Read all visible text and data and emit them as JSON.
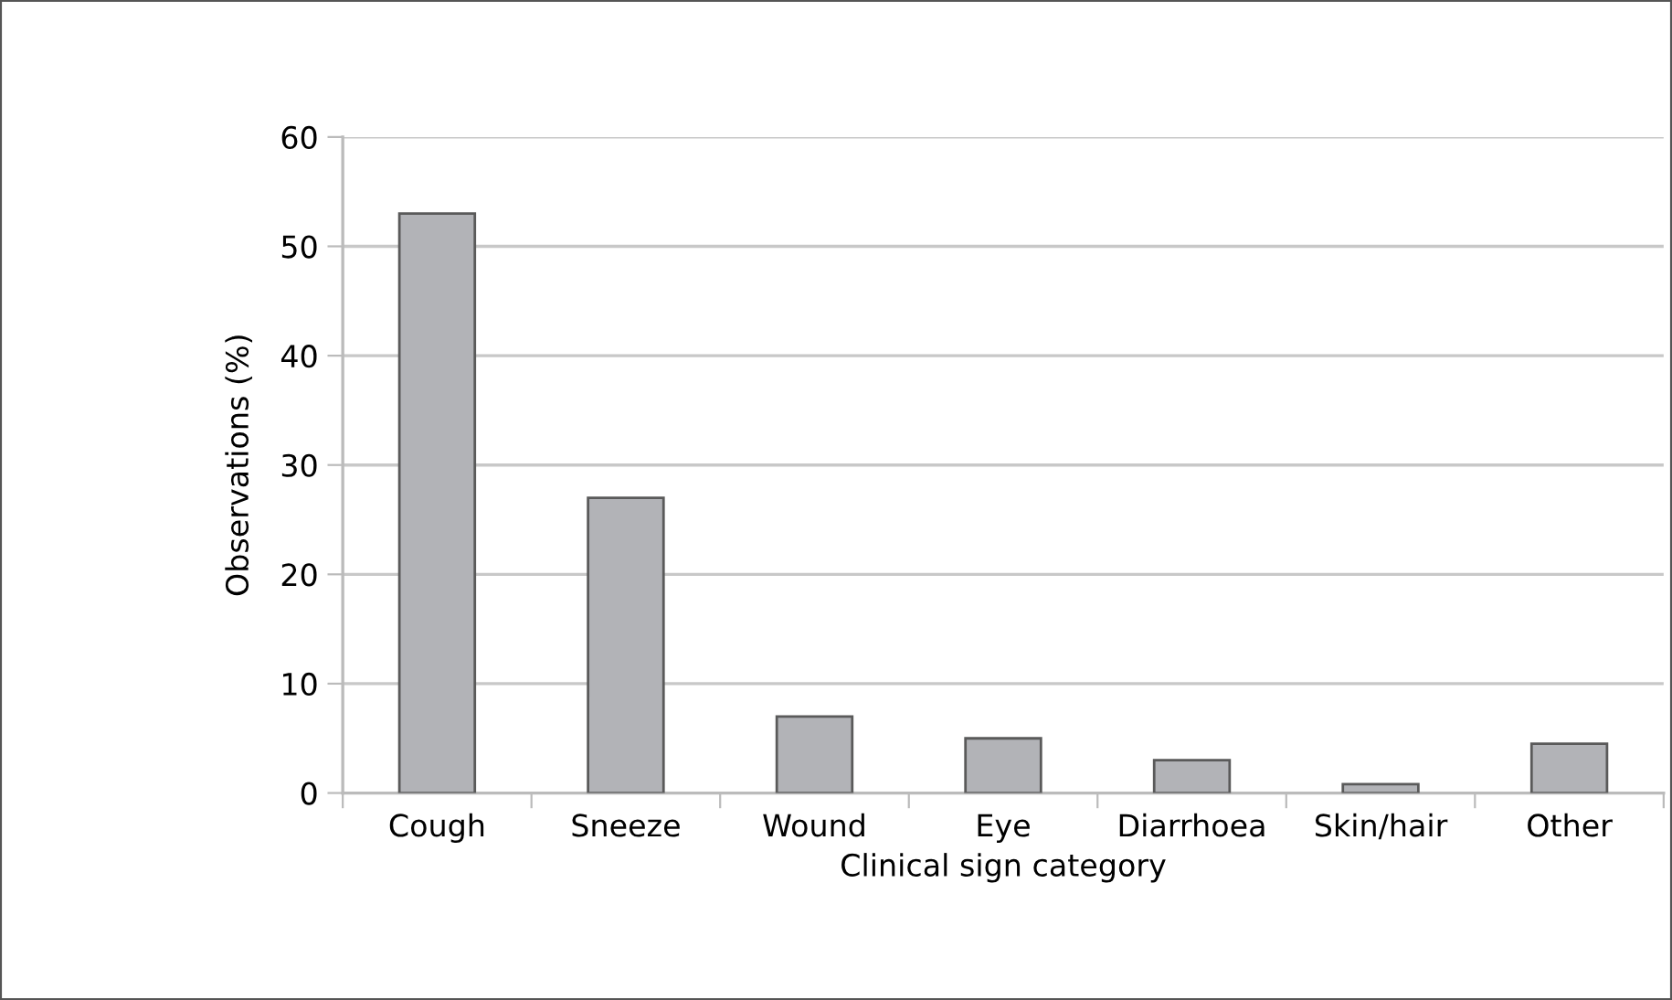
{
  "chart_data": {
    "type": "bar",
    "xlabel": "Clinical sign category",
    "ylabel": "Observations (%)",
    "categories": [
      "Cough",
      "Sneeze",
      "Wound",
      "Eye",
      "Diarrhoea",
      "Skin/hair",
      "Other"
    ],
    "values": [
      53,
      27,
      7,
      5,
      3,
      0.8,
      4.5
    ],
    "color": "#b2b3b7",
    "ylim": [
      0,
      60
    ],
    "yticks": [
      0,
      10,
      20,
      30,
      40,
      50,
      60
    ],
    "grid": "y"
  }
}
